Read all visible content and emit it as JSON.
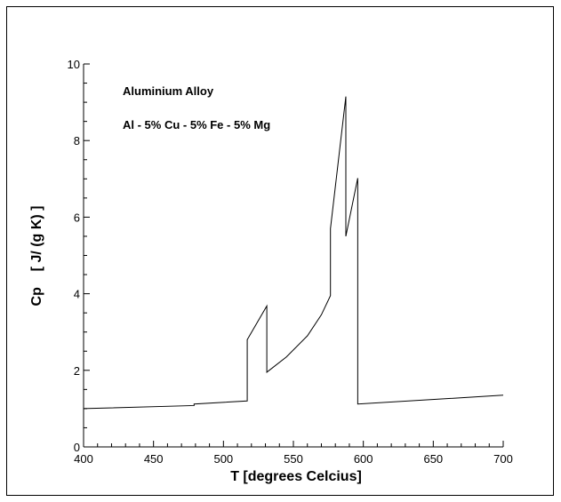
{
  "chart_data": {
    "type": "line",
    "title": "",
    "xlabel": "T [degrees Celcius]",
    "ylabel": "Cp    [ J/ (g K) ]",
    "xlim": [
      400,
      700
    ],
    "ylim": [
      0,
      10
    ],
    "x_ticks": [
      400,
      450,
      500,
      550,
      600,
      650,
      700
    ],
    "y_ticks": [
      0,
      2,
      4,
      6,
      8,
      10
    ],
    "grid": false,
    "legend": "none",
    "line_color": "#000000",
    "annotations": [
      "Aluminium Alloy",
      "Al - 5% Cu - 5% Fe - 5% Mg"
    ],
    "series": [
      {
        "x": [
          400,
          479,
          479,
          517,
          517,
          531,
          531,
          545,
          560,
          570,
          576.5,
          576.5,
          587.5,
          587.5,
          596,
          596,
          700
        ],
        "y": [
          1.0,
          1.08,
          1.12,
          1.2,
          2.8,
          3.68,
          1.95,
          2.35,
          2.9,
          3.45,
          3.95,
          5.7,
          9.15,
          5.5,
          7.02,
          1.12,
          1.35
        ]
      }
    ]
  }
}
